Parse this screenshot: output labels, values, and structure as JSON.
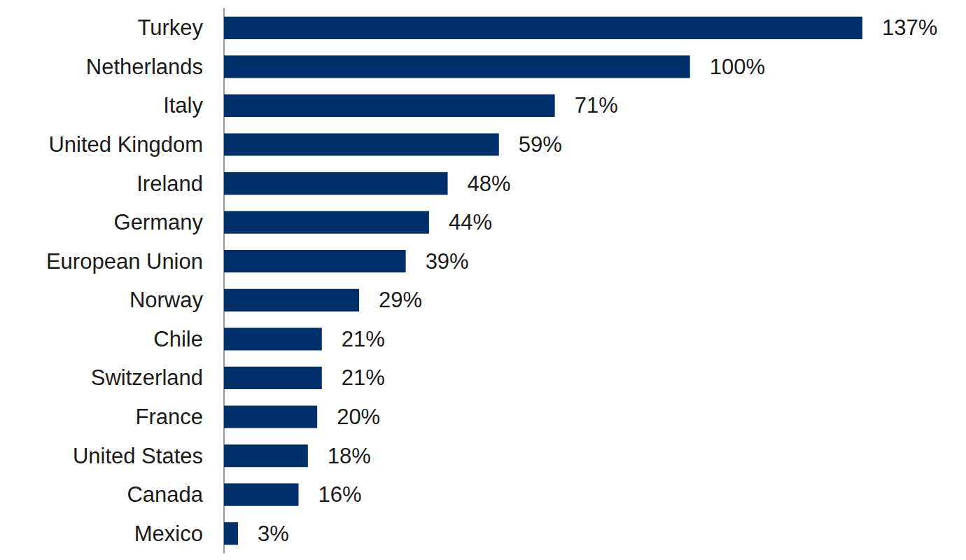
{
  "chart_data": {
    "type": "bar",
    "orientation": "horizontal",
    "categories": [
      "Turkey",
      "Netherlands",
      "Italy",
      "United Kingdom",
      "Ireland",
      "Germany",
      "European Union",
      "Norway",
      "Chile",
      "Switzerland",
      "France",
      "United States",
      "Canada",
      "Mexico"
    ],
    "values": [
      137,
      100,
      71,
      59,
      48,
      44,
      39,
      29,
      21,
      21,
      20,
      18,
      16,
      3
    ],
    "value_labels": [
      "137%",
      "100%",
      "71%",
      "59%",
      "48%",
      "44%",
      "39%",
      "29%",
      "21%",
      "21%",
      "20%",
      "18%",
      "16%",
      "3%"
    ],
    "color": "#00306a",
    "xlim": [
      0,
      140
    ],
    "grid": false,
    "data_labels": true,
    "tick_labels": "y"
  }
}
